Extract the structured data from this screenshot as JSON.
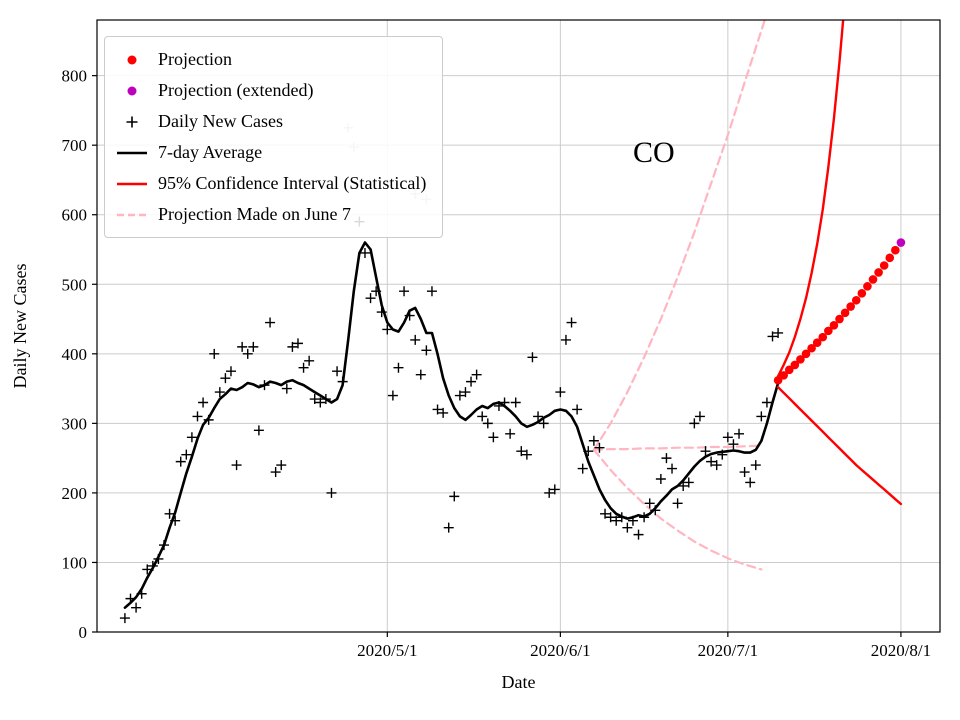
{
  "chart_data": {
    "type": "line",
    "annotation": "CO",
    "xlabel": "Date",
    "ylabel": "Daily New Cases",
    "x_domain": [
      "2020-03-10",
      "2020-08-08"
    ],
    "ylim": [
      0,
      880
    ],
    "grid": true,
    "legend_position": "upper left",
    "x_ticks": [
      {
        "date": "2020-05-01",
        "label": "2020/5/1"
      },
      {
        "date": "2020-06-01",
        "label": "2020/6/1"
      },
      {
        "date": "2020-07-01",
        "label": "2020/7/1"
      },
      {
        "date": "2020-08-01",
        "label": "2020/8/1"
      }
    ],
    "y_ticks": [
      0,
      100,
      200,
      300,
      400,
      500,
      600,
      700,
      800
    ],
    "colors": {
      "projection": "#ff0000",
      "projection_extended": "#bf00bf",
      "daily_cases": "#000000",
      "average": "#000000",
      "ci": "#ff0000",
      "june7": "#ffb6c1",
      "faded_cases": "#c2c2c2",
      "grid": "#cccccc",
      "frame": "#000000"
    },
    "legend": [
      {
        "label": "Projection",
        "marker": "dot"
      },
      {
        "label": "Projection (extended)",
        "marker": "dot"
      },
      {
        "label": "Daily New Cases",
        "marker": "plus"
      },
      {
        "label": "7-day Average",
        "marker": "line"
      },
      {
        "label": "95% Confidence Interval (Statistical)",
        "marker": "line"
      },
      {
        "label": "Projection Made on June 7",
        "marker": "dashed-line"
      }
    ],
    "series": [
      {
        "name": "projection-made-june7-upper",
        "kind": "line",
        "color_key": "june7",
        "width": 2.2,
        "dash": "8 5",
        "start": "2020-06-07",
        "step_days": 3,
        "values": [
          262,
          300,
          345,
          395,
          450,
          510,
          575,
          645,
          715,
          790,
          865,
          940
        ]
      },
      {
        "name": "projection-made-june7-central",
        "kind": "line",
        "color_key": "june7",
        "width": 2.2,
        "dash": "8 5",
        "start": "2020-06-07",
        "step_days": 3,
        "values": [
          262,
          263,
          263,
          264,
          264,
          265,
          265,
          266,
          266,
          267,
          268
        ]
      },
      {
        "name": "projection-made-june7-lower",
        "kind": "line",
        "color_key": "june7",
        "width": 2.2,
        "dash": "8 5",
        "start": "2020-06-07",
        "step_days": 3,
        "values": [
          262,
          233,
          207,
          184,
          163,
          146,
          130,
          117,
          106,
          97,
          90
        ]
      },
      {
        "name": "seven-day-average",
        "kind": "line",
        "color_key": "average",
        "width": 2.6,
        "start": "2020-03-15",
        "step_days": 1,
        "values": [
          35,
          42,
          50,
          62,
          78,
          92,
          108,
          125,
          150,
          172,
          200,
          228,
          252,
          278,
          298,
          308,
          322,
          335,
          342,
          350,
          348,
          352,
          358,
          356,
          352,
          355,
          360,
          358,
          355,
          360,
          362,
          358,
          355,
          350,
          345,
          340,
          335,
          330,
          335,
          355,
          420,
          490,
          545,
          560,
          550,
          510,
          470,
          445,
          435,
          432,
          445,
          462,
          466,
          450,
          430,
          430,
          400,
          365,
          340,
          322,
          310,
          305,
          312,
          320,
          325,
          322,
          328,
          330,
          325,
          318,
          310,
          300,
          295,
          298,
          302,
          308,
          312,
          318,
          320,
          318,
          310,
          295,
          270,
          245,
          225,
          205,
          190,
          178,
          170,
          166,
          163,
          165,
          168,
          166,
          170,
          178,
          188,
          196,
          205,
          210,
          218,
          228,
          238,
          246,
          252,
          256,
          258,
          259,
          260,
          261,
          260,
          258,
          258,
          262,
          275,
          300,
          330,
          358
        ]
      },
      {
        "name": "daily-new-cases",
        "kind": "plus",
        "color_key": "daily_cases",
        "start": "2020-03-15",
        "step_days": 1,
        "values": [
          20,
          48,
          35,
          55,
          90,
          95,
          105,
          125,
          170,
          160,
          245,
          255,
          280,
          310,
          330,
          305,
          400,
          345,
          365,
          375,
          240,
          410,
          400,
          410,
          290,
          355,
          445,
          230,
          240,
          350,
          410,
          415,
          380,
          390,
          335,
          330,
          335,
          200,
          375,
          360,
          null,
          null,
          590,
          545,
          480,
          490,
          460,
          435,
          340,
          380,
          490,
          455,
          420,
          370,
          405,
          490,
          320,
          315,
          150,
          195,
          340,
          345,
          360,
          370,
          310,
          300,
          280,
          325,
          330,
          285,
          330,
          260,
          255,
          395,
          310,
          300,
          200,
          205,
          345,
          420,
          445,
          320,
          235,
          260,
          275,
          265,
          170,
          165,
          160,
          165,
          150,
          160,
          140,
          165,
          185,
          175,
          220,
          250,
          235,
          185,
          210,
          215,
          300,
          310,
          260,
          245,
          240,
          255,
          280,
          270,
          285,
          230,
          215,
          240,
          310,
          330,
          425,
          430
        ]
      },
      {
        "name": "daily-new-cases-faded",
        "kind": "plus",
        "color_key": "faded_cases",
        "points": [
          [
            "2020-04-24",
            725
          ],
          [
            "2020-04-25",
            697
          ],
          [
            "2020-05-06",
            630
          ],
          [
            "2020-05-08",
            622
          ]
        ]
      },
      {
        "name": "ci-upper",
        "kind": "line",
        "color_key": "ci",
        "width": 2.4,
        "start": "2020-07-10",
        "step_days": 1,
        "values": [
          368,
          384,
          402,
          424,
          450,
          480,
          516,
          558,
          608,
          668,
          738,
          820,
          912
        ]
      },
      {
        "name": "ci-lower",
        "kind": "line",
        "color_key": "ci",
        "width": 2.4,
        "start": "2020-07-10",
        "step_days": 1,
        "values": [
          352,
          344,
          336,
          328,
          320,
          312,
          304,
          296,
          288,
          280,
          272,
          264,
          256,
          248,
          240,
          233,
          226,
          219,
          212,
          205,
          198,
          191,
          184
        ]
      },
      {
        "name": "projection",
        "kind": "dots",
        "color_key": "projection",
        "r": 4.3,
        "start": "2020-07-10",
        "step_days": 1,
        "values": [
          362,
          369,
          377,
          384,
          392,
          400,
          408,
          416,
          424,
          433,
          441,
          450,
          459,
          468,
          477,
          487,
          497,
          507,
          517,
          527,
          538,
          549
        ]
      },
      {
        "name": "projection-extended",
        "kind": "dots",
        "color_key": "projection_extended",
        "r": 4.3,
        "points": [
          [
            "2020-08-01",
            560
          ]
        ]
      }
    ]
  }
}
